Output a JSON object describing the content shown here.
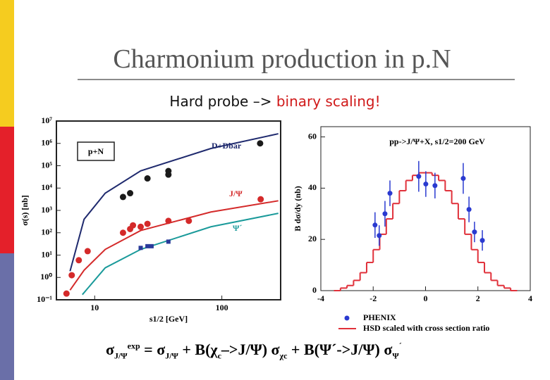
{
  "title": "Charmonium production in p.N",
  "subtitle": [
    "Hard probe –> ",
    "binary scaling!"
  ],
  "formula": [
    "σ",
    "J/Ψ",
    "exp",
    " = σ",
    "J/Ψ",
    " + B(χ",
    "c",
    "–>J/Ψ) σ",
    "χc",
    " + B(Ψ´->J/Ψ) σ",
    "Ψ",
    "´"
  ],
  "chart_data": [
    {
      "type": "scatter",
      "label": "p+N",
      "xlabel": "s1/2 [GeV]",
      "ylabel": "σ(s)  [nb]",
      "log_x": true,
      "log_y": true,
      "xlim": [
        5,
        290
      ],
      "xticks": [
        10,
        100
      ],
      "ylim": [
        0.1,
        10000000
      ],
      "yticks": [
        {
          "value": 0.1,
          "label": "10⁻¹"
        },
        {
          "value": 1,
          "label": "10⁰"
        },
        {
          "value": 10,
          "label": "10¹"
        },
        {
          "value": 100,
          "label": "10²"
        },
        {
          "value": 1000,
          "label": "10³"
        },
        {
          "value": 10000,
          "label": "10⁴"
        },
        {
          "value": 100000,
          "label": "10⁵"
        },
        {
          "value": 1000000,
          "label": "10⁶"
        },
        {
          "value": 10000000,
          "label": "10⁷"
        }
      ],
      "series": [
        {
          "name": "D+Dbar",
          "color": "#1a1a1a",
          "line_color": "#1f2a6e",
          "x": [
            16.7,
            19,
            26,
            38,
            38,
            200
          ],
          "values": [
            4000,
            5900,
            27000,
            58000,
            40000,
            1000000
          ],
          "fit_x": [
            6.4,
            8.25,
            12.1,
            23,
            82,
            278
          ],
          "fit_values": [
            1.9,
            400,
            5900,
            59000,
            590000,
            2700000
          ]
        },
        {
          "name": "J/Ψ",
          "color": "#d42a2a",
          "line_color": "#d42a2a",
          "x": [
            6,
            6.6,
            7.5,
            8.8,
            16.7,
            19,
            20,
            23,
            26,
            38,
            55,
            202
          ],
          "values": [
            0.19,
            1.26,
            5.9,
            15,
            100,
            147,
            215,
            185,
            250,
            340,
            340,
            3160
          ],
          "fit_x": [
            6.4,
            8.25,
            12.1,
            23,
            82,
            278
          ],
          "fit_values": [
            0.27,
            2.1,
            18,
            126,
            850,
            2700
          ]
        },
        {
          "name": "Ψ´",
          "color": "#2a3a9a",
          "line_color": "#1a9a9a",
          "x": [
            23,
            26,
            28,
            38
          ],
          "values": [
            21,
            25,
            25,
            40
          ],
          "fit_x": [
            8,
            12.1,
            23,
            82,
            278
          ],
          "fit_values": [
            0.17,
            2.7,
            18,
            185,
            740
          ]
        }
      ]
    },
    {
      "type": "scatter",
      "title": "pp->J/Ψ+X,  s1/2=200 GeV",
      "ylabel": "B dσ/dy (nb)",
      "xlim": [
        -4,
        4
      ],
      "xticks": [
        -4,
        -2,
        0,
        2,
        4
      ],
      "ylim": [
        0,
        64
      ],
      "yticks": [
        0,
        20,
        40,
        60
      ],
      "series": [
        {
          "name": "PHENIX",
          "color": "#2a3ad0",
          "x": [
            -1.93,
            -1.77,
            -1.55,
            -1.36,
            -0.26,
            0.01,
            0.36,
            1.44,
            1.66,
            1.87,
            2.17
          ],
          "values": [
            25.6,
            21.5,
            30,
            38,
            44.6,
            41.6,
            41,
            43.8,
            31.7,
            22.9,
            19.6
          ],
          "errors": [
            5,
            4,
            5,
            5,
            6,
            5,
            5,
            6,
            5,
            4,
            4
          ]
        }
      ],
      "histogram": {
        "name": "HSD scaled with cross section ratio",
        "color": "#e0303a",
        "bins": [
          -3.5,
          -3.25,
          -3,
          -2.75,
          -2.5,
          -2.25,
          -2,
          -1.75,
          -1.5,
          -1.25,
          -1,
          -0.75,
          -0.5,
          -0.25,
          0,
          0.25,
          0.5,
          0.75,
          1,
          1.25,
          1.5,
          1.75,
          2,
          2.25,
          2.5,
          2.75,
          3,
          3.25,
          3.5
        ],
        "counts": [
          0,
          1,
          2,
          4,
          7,
          11,
          16,
          22,
          28,
          34,
          39,
          43,
          45,
          46,
          46,
          45,
          43,
          39,
          34,
          28,
          22,
          16,
          11,
          7,
          4,
          2,
          1,
          0
        ]
      }
    }
  ]
}
